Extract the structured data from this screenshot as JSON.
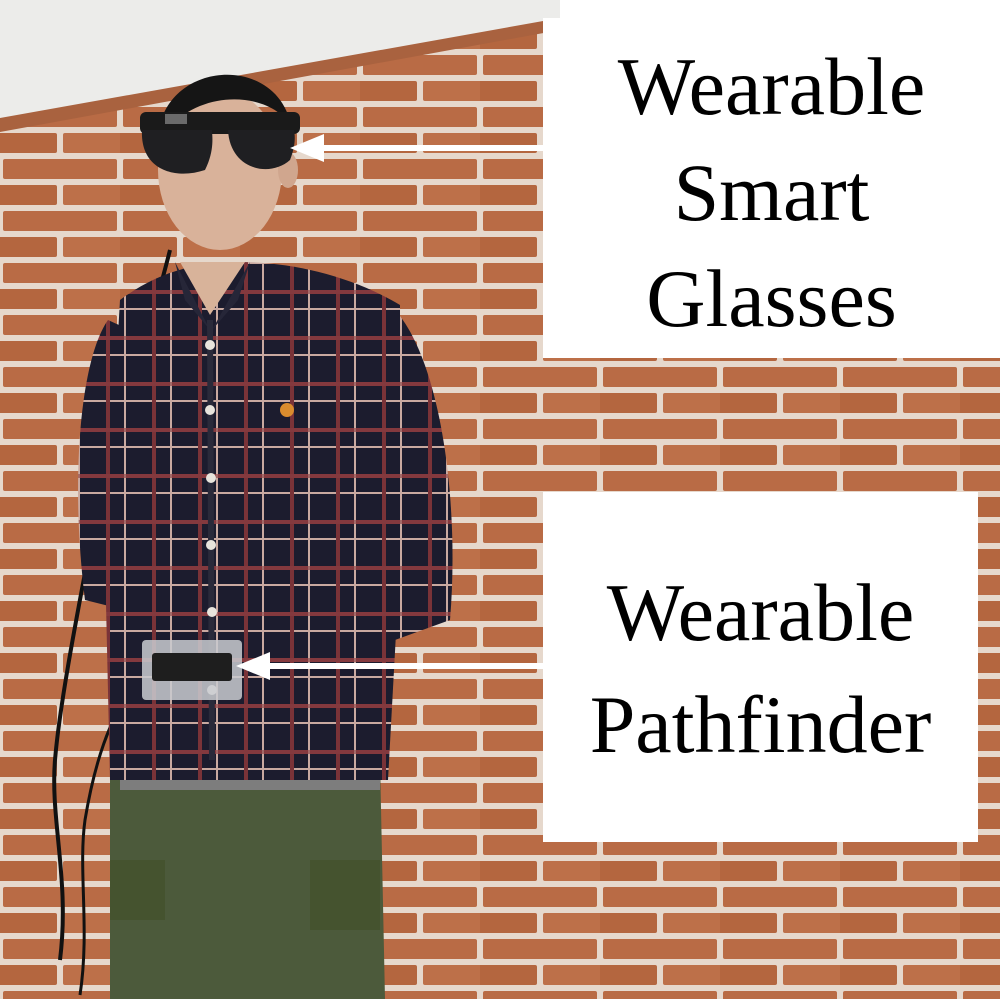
{
  "labels": {
    "glasses": {
      "line1": "Wearable",
      "line2": "Smart",
      "line3": "Glasses"
    },
    "pathfinder": {
      "line1": "Wearable",
      "line2": "Pathfinder"
    }
  },
  "colors": {
    "brick": "#b96b45",
    "mortar": "#e6d8cc",
    "shirt": "#1c1c2e",
    "plaid_red": "#7a3338",
    "pants": "#4c5a3b",
    "arrow": "#ffffff",
    "label_bg": "#ffffff",
    "ceiling": "#ececea"
  }
}
